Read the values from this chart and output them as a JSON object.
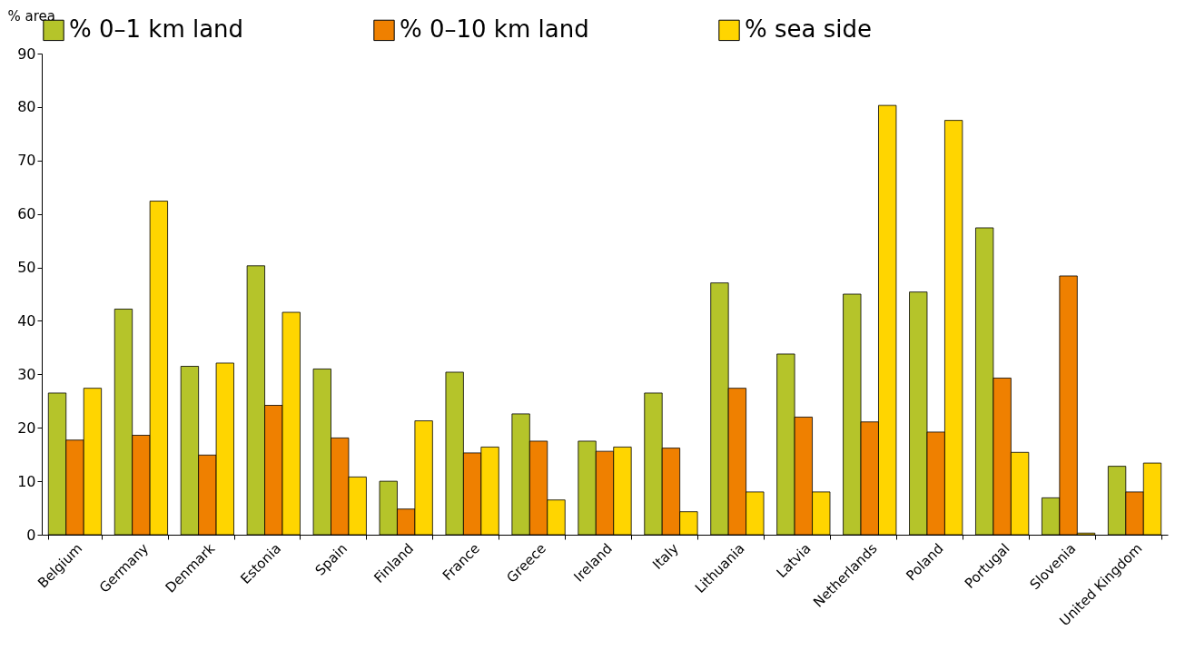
{
  "chart_data": {
    "type": "bar",
    "ylabel": "% area",
    "categories": [
      "Belgium",
      "Germany",
      "Denmark",
      "Estonia",
      "Spain",
      "Finland",
      "France",
      "Greece",
      "Ireland",
      "Italy",
      "Lithuania",
      "Latvia",
      "Netherlands",
      "Poland",
      "Portugal",
      "Slovenia",
      "United Kingdom"
    ],
    "series": [
      {
        "name": "% 0–1 km land",
        "color": "#b5c42a",
        "values": [
          26.5,
          42.2,
          31.5,
          50.3,
          31.0,
          10.0,
          30.4,
          22.6,
          17.5,
          26.5,
          47.1,
          33.8,
          45.0,
          45.4,
          57.4,
          6.9,
          12.8
        ]
      },
      {
        "name": "% 0–10 km land",
        "color": "#ef8000",
        "values": [
          17.7,
          18.6,
          14.9,
          24.2,
          18.1,
          4.8,
          15.3,
          17.5,
          15.6,
          16.2,
          27.4,
          22.0,
          21.1,
          19.2,
          29.3,
          48.4,
          8.0
        ]
      },
      {
        "name": "% sea side",
        "color": "#ffd500",
        "values": [
          27.4,
          62.4,
          32.1,
          41.6,
          10.8,
          21.3,
          16.4,
          6.5,
          16.4,
          4.3,
          8.0,
          8.0,
          80.3,
          77.5,
          15.4,
          0.3,
          13.4
        ]
      }
    ],
    "ylim": [
      0,
      90
    ],
    "yticks": [
      0,
      10,
      20,
      30,
      40,
      50,
      60,
      70,
      80,
      90
    ],
    "grid": false,
    "legend": "top"
  }
}
